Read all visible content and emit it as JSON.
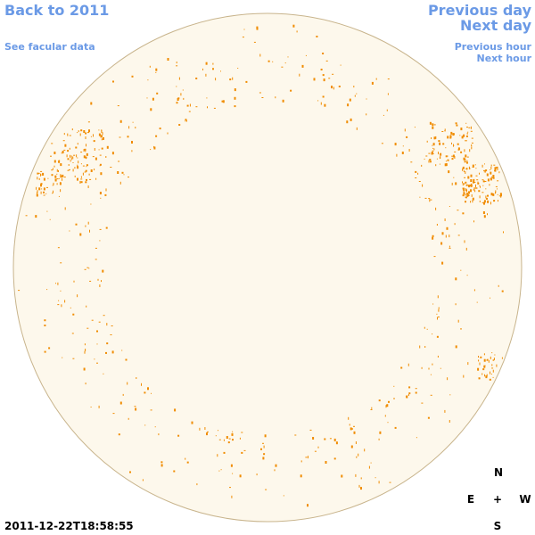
{
  "links": {
    "back": "Back to 2011",
    "facular": "See facular data",
    "previous_day": "Previous day",
    "next_day": "Next day",
    "previous_hour": "Previous hour",
    "next_hour": "Next hour"
  },
  "timestamp": "2011-12-22T18:58:55",
  "compass": {
    "north": "N",
    "east": "E",
    "center": "+",
    "west": "W",
    "south": "S"
  }
}
